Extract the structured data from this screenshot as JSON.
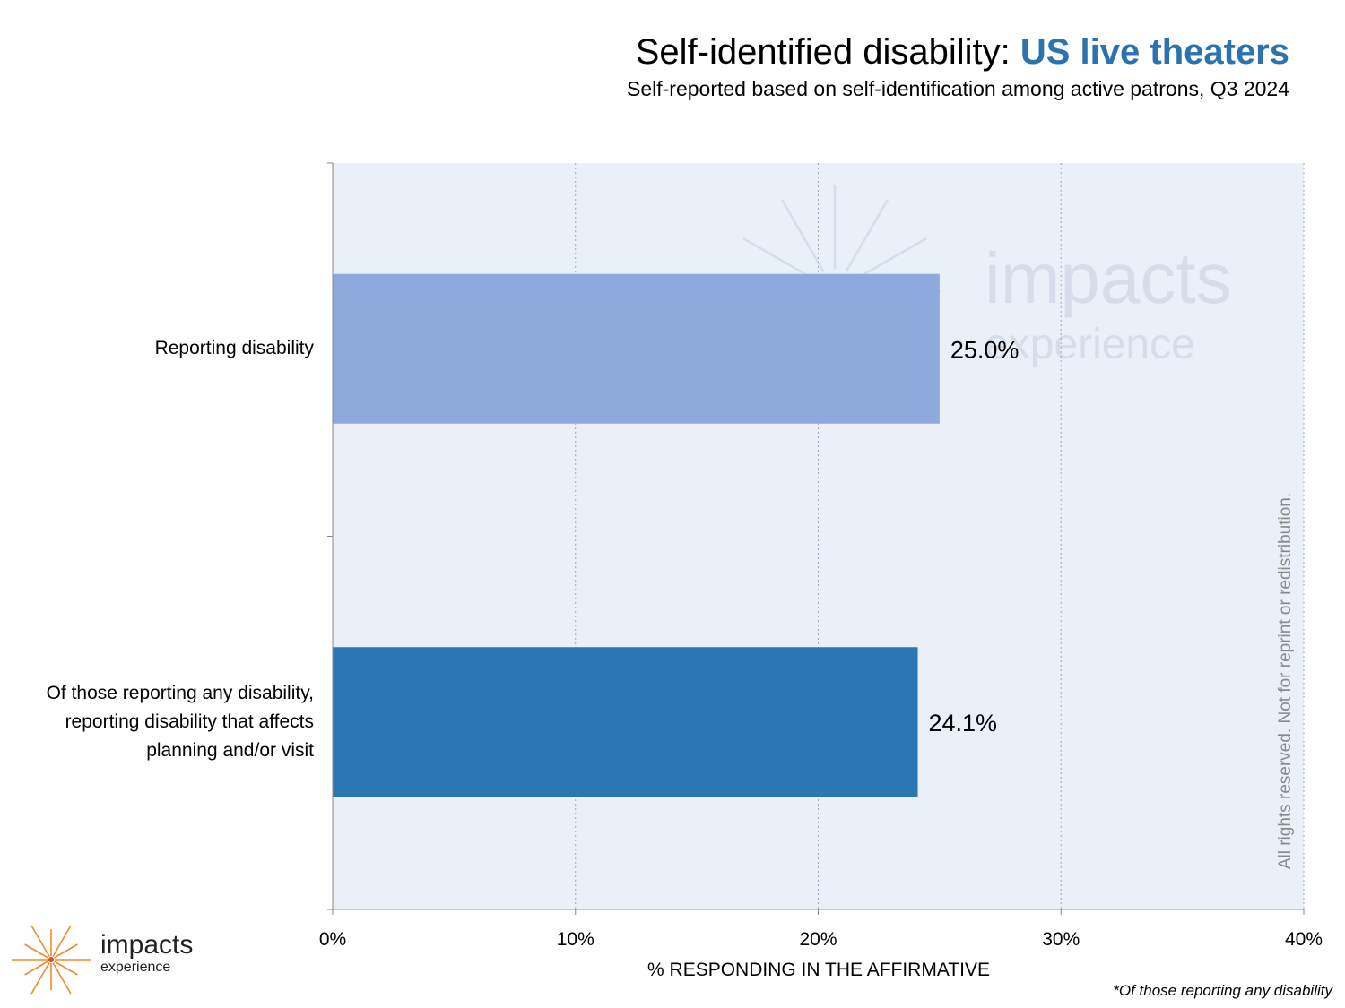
{
  "header": {
    "title_main": "Self-identified disability: ",
    "title_highlight": "US live theaters",
    "subtitle": "Self-reported based on self-identification among active patrons, Q3 2024"
  },
  "chart_data": {
    "type": "bar",
    "orientation": "horizontal",
    "categories": [
      "Reporting disability",
      "Of those reporting any disability,\nreporting disability that affects\nplanning and/or visit"
    ],
    "values": [
      25.0,
      24.1
    ],
    "value_labels": [
      "25.0%",
      "24.1%"
    ],
    "xlabel": "% RESPONDING IN THE AFFIRMATIVE",
    "xlim": [
      0,
      40
    ],
    "xticks": [
      0,
      10,
      20,
      30,
      40
    ],
    "xtick_labels": [
      "0%",
      "10%",
      "20%",
      "30%",
      "40%"
    ],
    "grid": true,
    "colors": [
      "#8eaadc",
      "#2b76b3"
    ],
    "background": "#e9f0f7"
  },
  "watermark": {
    "line1": "impacts",
    "line2": "experience"
  },
  "rights_text": "All rights reserved. Not for reprint or redistribution.",
  "footnote": "*Of those reporting any disability",
  "logo": {
    "line1": "impacts",
    "line2": "experience",
    "color": "#f08a2c"
  }
}
